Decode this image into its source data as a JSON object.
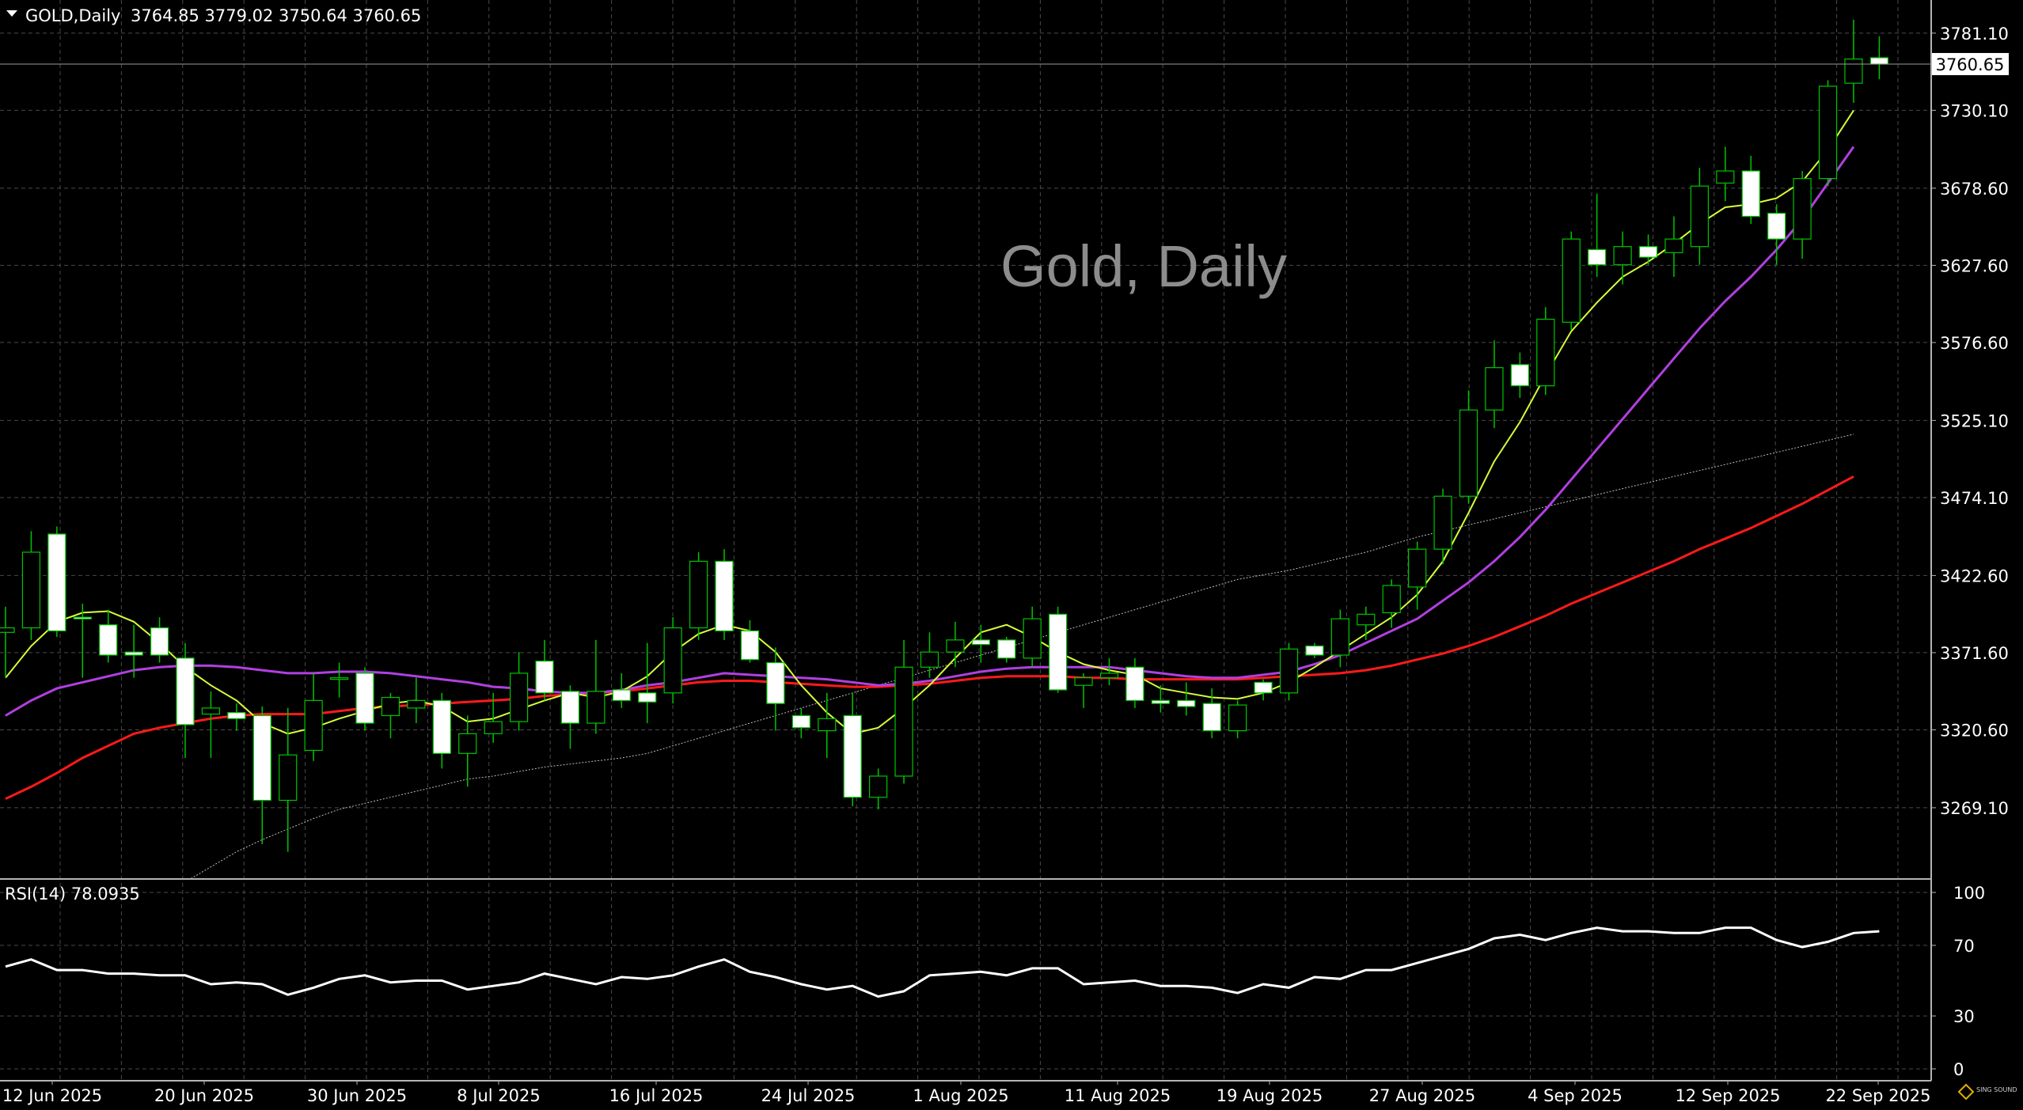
{
  "header": {
    "symbol_line": "GOLD,Daily",
    "ohlc": "3764.85 3779.02 3750.64 3760.65"
  },
  "watermark": "Gold, Daily",
  "rsi_label": "RSI(14) 78.0935",
  "current_price": "3760.65",
  "logo_text": "SING SOUND",
  "colors": {
    "background": "#000000",
    "grid": "#4a4a4a",
    "candle_up_fill": "#000000",
    "candle_down_fill": "#ffffff",
    "candle_outline": "#00c400",
    "ma_fast": "#d6ff3a",
    "ma_mid": "#b040e0",
    "ma_slow": "#ff1a1a",
    "ma_long": "#bdbdbd",
    "rsi_line": "#ffffff",
    "axis_text": "#ffffff"
  },
  "chart_data": [
    {
      "type": "candlestick",
      "title": "GOLD,Daily",
      "price_ticks": [
        "3781.10",
        "3730.10",
        "3678.60",
        "3627.60",
        "3576.60",
        "3525.10",
        "3474.10",
        "3422.60",
        "3371.60",
        "3320.60",
        "3269.10"
      ],
      "date_ticks": [
        "12 Jun 2025",
        "20 Jun 2025",
        "30 Jun 2025",
        "8 Jul 2025",
        "16 Jul 2025",
        "24 Jul 2025",
        "1 Aug 2025",
        "11 Aug 2025",
        "19 Aug 2025",
        "27 Aug 2025",
        "4 Sep 2025",
        "12 Sep 2025",
        "22 Sep 2025"
      ],
      "ylim": [
        3222,
        3803
      ],
      "grid": true,
      "candles": [
        {
          "o": 3385,
          "h": 3402,
          "l": 3355,
          "c": 3388
        },
        {
          "o": 3388,
          "h": 3452,
          "l": 3380,
          "c": 3438
        },
        {
          "o": 3450,
          "h": 3455,
          "l": 3382,
          "c": 3386
        },
        {
          "o": 3395,
          "h": 3404,
          "l": 3355,
          "c": 3394
        },
        {
          "o": 3390,
          "h": 3400,
          "l": 3365,
          "c": 3370
        },
        {
          "o": 3372,
          "h": 3390,
          "l": 3355,
          "c": 3370
        },
        {
          "o": 3388,
          "h": 3395,
          "l": 3365,
          "c": 3370
        },
        {
          "o": 3368,
          "h": 3378,
          "l": 3302,
          "c": 3324
        },
        {
          "o": 3331,
          "h": 3346,
          "l": 3302,
          "c": 3335
        },
        {
          "o": 3332,
          "h": 3338,
          "l": 3320,
          "c": 3328
        },
        {
          "o": 3330,
          "h": 3336,
          "l": 3245,
          "c": 3274
        },
        {
          "o": 3274,
          "h": 3335,
          "l": 3240,
          "c": 3304
        },
        {
          "o": 3307,
          "h": 3358,
          "l": 3300,
          "c": 3340
        },
        {
          "o": 3355,
          "h": 3365,
          "l": 3342,
          "c": 3355
        },
        {
          "o": 3358,
          "h": 3362,
          "l": 3320,
          "c": 3325
        },
        {
          "o": 3330,
          "h": 3345,
          "l": 3315,
          "c": 3342
        },
        {
          "o": 3335,
          "h": 3355,
          "l": 3325,
          "c": 3340
        },
        {
          "o": 3340,
          "h": 3345,
          "l": 3295,
          "c": 3305
        },
        {
          "o": 3305,
          "h": 3330,
          "l": 3283,
          "c": 3318
        },
        {
          "o": 3318,
          "h": 3345,
          "l": 3312,
          "c": 3326
        },
        {
          "o": 3326,
          "h": 3372,
          "l": 3320,
          "c": 3358
        },
        {
          "o": 3366,
          "h": 3380,
          "l": 3340,
          "c": 3345
        },
        {
          "o": 3346,
          "h": 3350,
          "l": 3308,
          "c": 3325
        },
        {
          "o": 3325,
          "h": 3380,
          "l": 3318,
          "c": 3346
        },
        {
          "o": 3347,
          "h": 3358,
          "l": 3335,
          "c": 3340
        },
        {
          "o": 3345,
          "h": 3378,
          "l": 3325,
          "c": 3339
        },
        {
          "o": 3345,
          "h": 3395,
          "l": 3338,
          "c": 3388
        },
        {
          "o": 3388,
          "h": 3438,
          "l": 3380,
          "c": 3432
        },
        {
          "o": 3432,
          "h": 3440,
          "l": 3380,
          "c": 3386
        },
        {
          "o": 3386,
          "h": 3393,
          "l": 3365,
          "c": 3367
        },
        {
          "o": 3365,
          "h": 3375,
          "l": 3320,
          "c": 3338
        },
        {
          "o": 3330,
          "h": 3335,
          "l": 3315,
          "c": 3322
        },
        {
          "o": 3320,
          "h": 3345,
          "l": 3302,
          "c": 3328
        },
        {
          "o": 3330,
          "h": 3345,
          "l": 3270,
          "c": 3276
        },
        {
          "o": 3276,
          "h": 3295,
          "l": 3268,
          "c": 3290
        },
        {
          "o": 3290,
          "h": 3380,
          "l": 3285,
          "c": 3362
        },
        {
          "o": 3362,
          "h": 3385,
          "l": 3355,
          "c": 3372
        },
        {
          "o": 3372,
          "h": 3392,
          "l": 3362,
          "c": 3380
        },
        {
          "o": 3380,
          "h": 3390,
          "l": 3365,
          "c": 3377
        },
        {
          "o": 3380,
          "h": 3382,
          "l": 3365,
          "c": 3368
        },
        {
          "o": 3368,
          "h": 3402,
          "l": 3362,
          "c": 3394
        },
        {
          "o": 3397,
          "h": 3402,
          "l": 3345,
          "c": 3347
        },
        {
          "o": 3350,
          "h": 3358,
          "l": 3335,
          "c": 3355
        },
        {
          "o": 3355,
          "h": 3368,
          "l": 3350,
          "c": 3358
        },
        {
          "o": 3362,
          "h": 3368,
          "l": 3335,
          "c": 3340
        },
        {
          "o": 3340,
          "h": 3350,
          "l": 3332,
          "c": 3338
        },
        {
          "o": 3340,
          "h": 3352,
          "l": 3330,
          "c": 3336
        },
        {
          "o": 3338,
          "h": 3348,
          "l": 3315,
          "c": 3320
        },
        {
          "o": 3320,
          "h": 3340,
          "l": 3315,
          "c": 3337
        },
        {
          "o": 3352,
          "h": 3354,
          "l": 3340,
          "c": 3345
        },
        {
          "o": 3345,
          "h": 3378,
          "l": 3340,
          "c": 3374
        },
        {
          "o": 3376,
          "h": 3378,
          "l": 3368,
          "c": 3370
        },
        {
          "o": 3370,
          "h": 3400,
          "l": 3362,
          "c": 3394
        },
        {
          "o": 3390,
          "h": 3402,
          "l": 3380,
          "c": 3397
        },
        {
          "o": 3398,
          "h": 3420,
          "l": 3388,
          "c": 3416
        },
        {
          "o": 3415,
          "h": 3445,
          "l": 3400,
          "c": 3440
        },
        {
          "o": 3440,
          "h": 3480,
          "l": 3430,
          "c": 3475
        },
        {
          "o": 3475,
          "h": 3545,
          "l": 3470,
          "c": 3532
        },
        {
          "o": 3532,
          "h": 3578,
          "l": 3520,
          "c": 3560
        },
        {
          "o": 3562,
          "h": 3570,
          "l": 3540,
          "c": 3548
        },
        {
          "o": 3548,
          "h": 3600,
          "l": 3542,
          "c": 3592
        },
        {
          "o": 3590,
          "h": 3650,
          "l": 3585,
          "c": 3645
        },
        {
          "o": 3638,
          "h": 3675,
          "l": 3620,
          "c": 3628
        },
        {
          "o": 3628,
          "h": 3650,
          "l": 3615,
          "c": 3640
        },
        {
          "o": 3640,
          "h": 3648,
          "l": 3628,
          "c": 3633
        },
        {
          "o": 3636,
          "h": 3660,
          "l": 3620,
          "c": 3645
        },
        {
          "o": 3640,
          "h": 3692,
          "l": 3628,
          "c": 3680
        },
        {
          "o": 3682,
          "h": 3706,
          "l": 3670,
          "c": 3690
        },
        {
          "o": 3690,
          "h": 3700,
          "l": 3655,
          "c": 3660
        },
        {
          "o": 3662,
          "h": 3668,
          "l": 3628,
          "c": 3645
        },
        {
          "o": 3645,
          "h": 3690,
          "l": 3632,
          "c": 3685
        },
        {
          "o": 3685,
          "h": 3750,
          "l": 3680,
          "c": 3746
        },
        {
          "o": 3748,
          "h": 3790,
          "l": 3735,
          "c": 3764
        },
        {
          "o": 3764.85,
          "h": 3779.02,
          "l": 3750.64,
          "c": 3760.65
        }
      ],
      "ma_fast": [
        3355,
        3376,
        3392,
        3398,
        3399,
        3392,
        3378,
        3362,
        3350,
        3340,
        3325,
        3318,
        3322,
        3328,
        3333,
        3338,
        3340,
        3336,
        3326,
        3328,
        3334,
        3340,
        3345,
        3342,
        3346,
        3356,
        3372,
        3384,
        3390,
        3386,
        3372,
        3350,
        3332,
        3318,
        3322,
        3335,
        3350,
        3368,
        3385,
        3390,
        3382,
        3372,
        3364,
        3360,
        3357,
        3348,
        3345,
        3342,
        3341,
        3345,
        3352,
        3362,
        3373,
        3384,
        3395,
        3410,
        3432,
        3464,
        3498,
        3524,
        3555,
        3584,
        3603,
        3620,
        3630,
        3642,
        3655,
        3666,
        3668,
        3672,
        3683,
        3704,
        3730
      ],
      "ma_mid": [
        3330,
        3340,
        3348,
        3352,
        3356,
        3360,
        3362,
        3363,
        3363,
        3362,
        3360,
        3358,
        3358,
        3359,
        3359,
        3358,
        3356,
        3354,
        3352,
        3349,
        3348,
        3346,
        3345,
        3345,
        3347,
        3350,
        3352,
        3355,
        3358,
        3357,
        3356,
        3355,
        3354,
        3352,
        3350,
        3351,
        3353,
        3356,
        3359,
        3361,
        3362,
        3362,
        3362,
        3362,
        3360,
        3358,
        3356,
        3355,
        3355,
        3357,
        3359,
        3364,
        3370,
        3378,
        3386,
        3394,
        3406,
        3418,
        3432,
        3448,
        3466,
        3486,
        3506,
        3526,
        3546,
        3566,
        3586,
        3604,
        3620,
        3638,
        3658,
        3682,
        3706
      ],
      "ma_slow": [
        3275,
        3283,
        3292,
        3302,
        3310,
        3318,
        3322,
        3325,
        3328,
        3330,
        3331,
        3331,
        3331,
        3333,
        3335,
        3336,
        3337,
        3338,
        3339,
        3340,
        3341,
        3343,
        3344,
        3345,
        3346,
        3348,
        3350,
        3352,
        3353,
        3353,
        3352,
        3351,
        3350,
        3349,
        3349,
        3350,
        3351,
        3353,
        3355,
        3356,
        3356,
        3356,
        3355,
        3355,
        3354,
        3354,
        3354,
        3354,
        3354,
        3355,
        3356,
        3357,
        3358,
        3360,
        3363,
        3367,
        3371,
        3376,
        3382,
        3389,
        3396,
        3404,
        3411,
        3418,
        3425,
        3432,
        3440,
        3447,
        3454,
        3462,
        3470,
        3479,
        3488
      ],
      "ma_long": [
        3150,
        3160,
        3170,
        3180,
        3190,
        3200,
        3210,
        3220,
        3230,
        3240,
        3248,
        3255,
        3262,
        3268,
        3272,
        3276,
        3280,
        3284,
        3288,
        3290,
        3293,
        3296,
        3298,
        3300,
        3302,
        3305,
        3310,
        3315,
        3320,
        3325,
        3330,
        3335,
        3340,
        3345,
        3350,
        3355,
        3360,
        3365,
        3370,
        3375,
        3380,
        3385,
        3390,
        3395,
        3400,
        3405,
        3410,
        3415,
        3420,
        3423,
        3426,
        3430,
        3434,
        3438,
        3443,
        3448,
        3452,
        3456,
        3460,
        3464,
        3468,
        3472,
        3476,
        3480,
        3484,
        3488,
        3492,
        3496,
        3500,
        3504,
        3508,
        3512,
        3516
      ]
    },
    {
      "type": "line",
      "title": "RSI(14) 78.0935",
      "ylim": [
        0,
        100
      ],
      "y_ticks": [
        "100",
        "70",
        "30",
        "0"
      ],
      "grid": true,
      "series": [
        {
          "values": [
            58,
            62,
            56,
            56,
            54,
            54,
            53,
            53,
            48,
            49,
            48,
            42,
            46,
            51,
            53,
            49,
            50,
            50,
            45,
            47,
            49,
            54,
            51,
            48,
            52,
            51,
            53,
            58,
            62,
            55,
            52,
            48,
            45,
            47,
            41,
            44,
            53,
            54,
            55,
            53,
            57,
            57,
            48,
            49,
            50,
            47,
            47,
            46,
            43,
            48,
            46,
            52,
            51,
            56,
            56,
            60,
            64,
            68,
            74,
            76,
            73,
            77,
            80,
            78,
            78,
            77,
            77,
            80,
            80,
            73,
            69,
            72,
            77,
            78
          ]
        }
      ]
    }
  ]
}
